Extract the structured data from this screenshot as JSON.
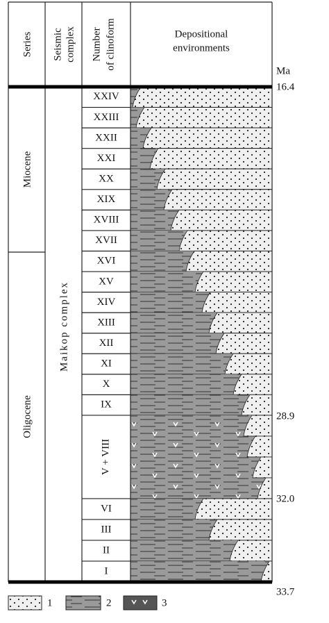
{
  "header": {
    "series": "Series",
    "seismic_complex": [
      "Seismic",
      "complex"
    ],
    "clinoform_number": [
      "Number",
      "of clinoform"
    ],
    "depositional": [
      "Depositional",
      "environments"
    ],
    "age_unit": "Ma"
  },
  "series": [
    "Miocene",
    "Oligocene"
  ],
  "seismic_complex": "Maikop complex",
  "clinoforms": [
    "XXIV",
    "XXIII",
    "XXII",
    "XXI",
    "XX",
    "XIX",
    "XVIII",
    "XVII",
    "XVI",
    "XV",
    "XIV",
    "XIII",
    "XII",
    "XI",
    "X",
    "IX",
    "V + VIII",
    "VI",
    "III",
    "II",
    "I"
  ],
  "ages": [
    "16.4",
    "28.9",
    "32.0",
    "33.7"
  ],
  "legend": [
    "1",
    "2",
    "3"
  ]
}
